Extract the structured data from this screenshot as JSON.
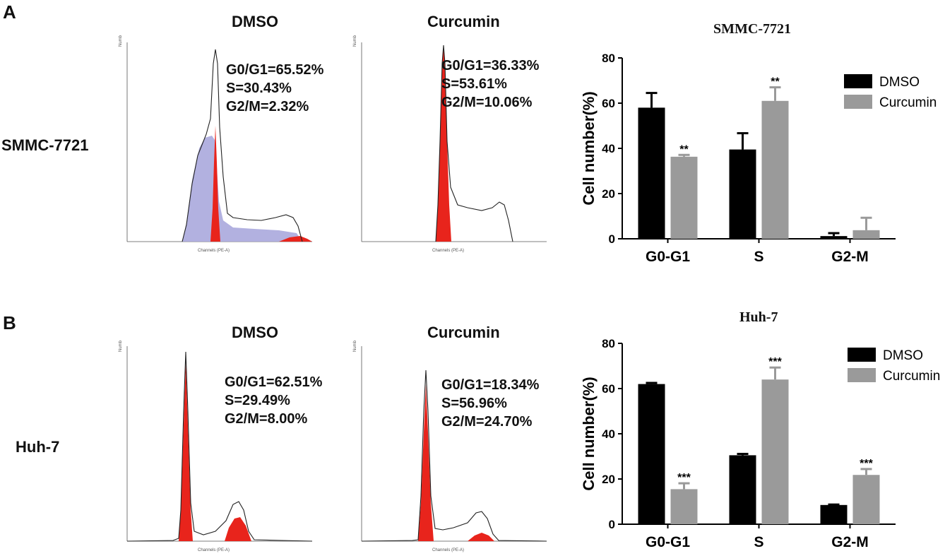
{
  "panels": [
    {
      "letter": "A",
      "cell_line": "SMMC-7721",
      "histograms": [
        {
          "title": "DMSO",
          "g0g1": "G0/G1=65.52%",
          "s": "S=30.43%",
          "g2m": "G2/M=2.32%",
          "xaxis_label": "Channels (PE-A)",
          "yaxis_label": "Number"
        },
        {
          "title": "Curcumin",
          "g0g1": "G0/G1=36.33%",
          "s": "S=53.61%",
          "g2m": "G2/M=10.06%",
          "xaxis_label": "Channels (PE-A)",
          "yaxis_label": "Number"
        }
      ]
    },
    {
      "letter": "B",
      "cell_line": "Huh-7",
      "histograms": [
        {
          "title": "DMSO",
          "g0g1": "G0/G1=62.51%",
          "s": "S=29.49%",
          "g2m": "G2/M=8.00%",
          "xaxis_label": "Channels (PE-A)",
          "yaxis_label": "Number"
        },
        {
          "title": "Curcumin",
          "g0g1": "G0/G1=18.34%",
          "s": "S=56.96%",
          "g2m": "G2/M=24.70%",
          "xaxis_label": "Channels (PE-A)",
          "yaxis_label": "Number"
        }
      ]
    }
  ],
  "colors": {
    "dmso": "#000000",
    "curcumin": "#9a9a9a",
    "g1_peak": "#e8241c",
    "s_phase": "#aaa9dd"
  },
  "chart_data": [
    {
      "type": "bar",
      "title": "SMMC-7721",
      "categories": [
        "G0-G1",
        "S",
        "G2-M"
      ],
      "series": [
        {
          "name": "DMSO",
          "values": [
            58,
            39.5,
            1.2
          ],
          "errors": [
            6.5,
            7.2,
            1.3
          ],
          "sig": [
            "",
            "",
            ""
          ]
        },
        {
          "name": "Curcumin",
          "values": [
            36.3,
            61,
            3.8
          ],
          "errors": [
            0.8,
            6,
            5.5
          ],
          "sig": [
            "**",
            "**",
            ""
          ]
        }
      ],
      "xlabel": "",
      "ylabel": "Cell number(%)",
      "ylim": [
        0,
        80
      ],
      "yticks": [
        0,
        20,
        40,
        60,
        80
      ],
      "legend": "top-right"
    },
    {
      "type": "bar",
      "title": "Huh-7",
      "categories": [
        "G0-G1",
        "S",
        "G2-M"
      ],
      "series": [
        {
          "name": "DMSO",
          "values": [
            62,
            30.5,
            8.5
          ],
          "errors": [
            0.5,
            0.6,
            0.2
          ],
          "sig": [
            "",
            "",
            ""
          ]
        },
        {
          "name": "Curcumin",
          "values": [
            15.5,
            64,
            21.8
          ],
          "errors": [
            2.6,
            5.3,
            2.6
          ],
          "sig": [
            "***",
            "***",
            "***"
          ]
        }
      ],
      "xlabel": "",
      "ylabel": "Cell number(%)",
      "ylim": [
        0,
        80
      ],
      "yticks": [
        0,
        20,
        40,
        60,
        80
      ],
      "legend": "top-right"
    }
  ]
}
